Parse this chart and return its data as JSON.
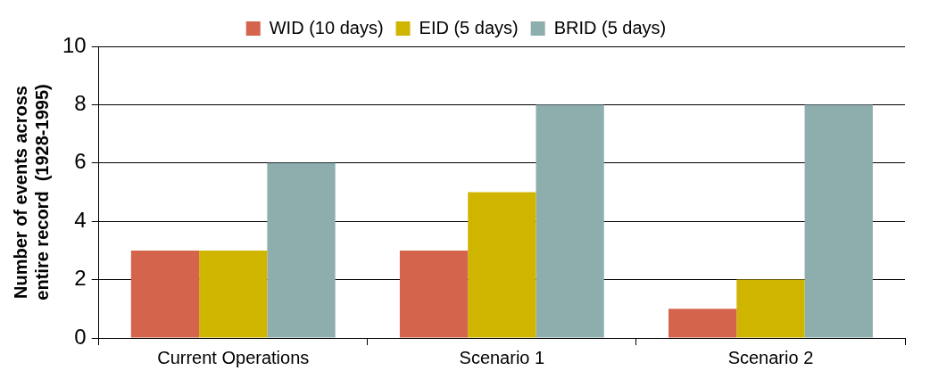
{
  "chart_data": {
    "type": "bar",
    "categories": [
      "Current Operations",
      "Scenario 1",
      "Scenario 2"
    ],
    "series": [
      {
        "name": "WID (10 days)",
        "color": "#d4654c",
        "values": [
          3,
          3,
          1
        ]
      },
      {
        "name": "EID (5 days)",
        "color": "#cfb500",
        "values": [
          3,
          5,
          2
        ]
      },
      {
        "name": "BRID (5 days)",
        "color": "#8eaeae",
        "values": [
          6,
          8,
          8
        ]
      }
    ],
    "ylabel": "Number of events across entire record  (1928-1995)",
    "ylim": [
      0,
      10
    ],
    "yticks": [
      0,
      2,
      4,
      6,
      8,
      10
    ],
    "grid": "y",
    "legend": "top"
  }
}
